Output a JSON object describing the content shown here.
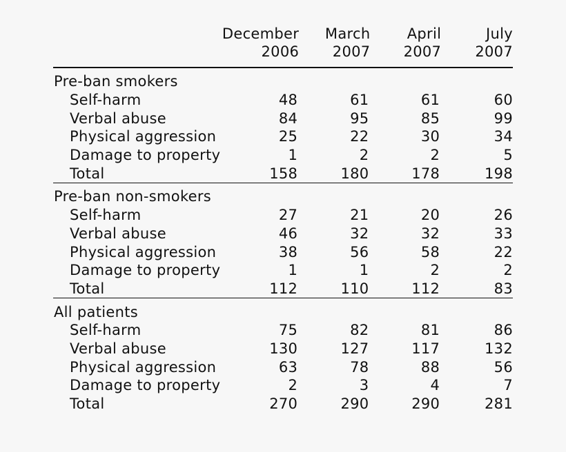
{
  "columns": [
    {
      "line1": "December",
      "line2": "2006"
    },
    {
      "line1": "March",
      "line2": "2007"
    },
    {
      "line1": "April",
      "line2": "2007"
    },
    {
      "line1": "July",
      "line2": "2007"
    }
  ],
  "groups": [
    {
      "title": "Pre-ban smokers",
      "rows": [
        {
          "label": "Self-harm",
          "values": [
            "48",
            "61",
            "61",
            "60"
          ]
        },
        {
          "label": "Verbal abuse",
          "values": [
            "84",
            "95",
            "85",
            "99"
          ]
        },
        {
          "label": "Physical aggression",
          "values": [
            "25",
            "22",
            "30",
            "34"
          ]
        },
        {
          "label": "Damage to property",
          "values": [
            "1",
            "2",
            "2",
            "5"
          ]
        },
        {
          "label": "Total",
          "values": [
            "158",
            "180",
            "178",
            "198"
          ]
        }
      ]
    },
    {
      "title": "Pre-ban non-smokers",
      "rows": [
        {
          "label": "Self-harm",
          "values": [
            "27",
            "21",
            "20",
            "26"
          ]
        },
        {
          "label": "Verbal abuse",
          "values": [
            "46",
            "32",
            "32",
            "33"
          ]
        },
        {
          "label": "Physical aggression",
          "values": [
            "38",
            "56",
            "58",
            "22"
          ]
        },
        {
          "label": "Damage to property",
          "values": [
            "1",
            "1",
            "2",
            "2"
          ]
        },
        {
          "label": "Total",
          "values": [
            "112",
            "110",
            "112",
            "83"
          ]
        }
      ]
    },
    {
      "title": "All patients",
      "rows": [
        {
          "label": "Self-harm",
          "values": [
            "75",
            "82",
            "81",
            "86"
          ]
        },
        {
          "label": "Verbal abuse",
          "values": [
            "130",
            "127",
            "117",
            "132"
          ]
        },
        {
          "label": "Physical aggression",
          "values": [
            "63",
            "78",
            "88",
            "56"
          ]
        },
        {
          "label": "Damage to property",
          "values": [
            "2",
            "3",
            "4",
            "7"
          ]
        },
        {
          "label": "Total",
          "values": [
            "270",
            "290",
            "290",
            "281"
          ]
        }
      ]
    }
  ]
}
